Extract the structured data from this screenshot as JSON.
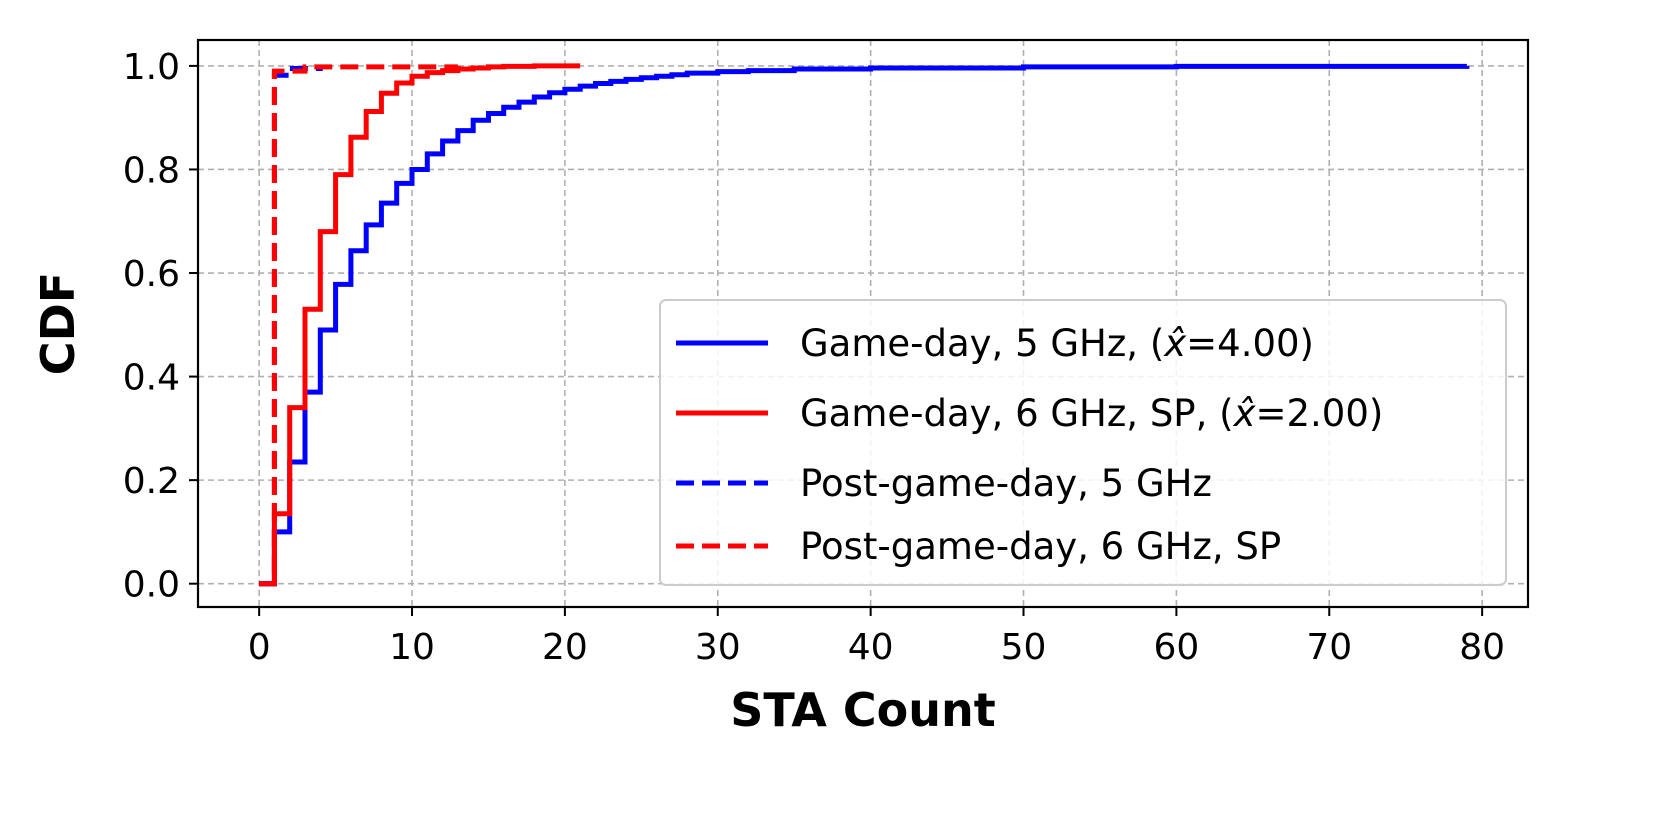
{
  "chart_data": {
    "type": "line",
    "xlabel": "STA Count",
    "ylabel": "CDF",
    "xlim": [
      -4,
      83
    ],
    "ylim": [
      -0.045,
      1.05
    ],
    "xticks": [
      0,
      10,
      20,
      30,
      40,
      50,
      60,
      70,
      80
    ],
    "xtick_labels": [
      "0",
      "10",
      "20",
      "30",
      "40",
      "50",
      "60",
      "70",
      "80"
    ],
    "yticks": [
      0.0,
      0.2,
      0.4,
      0.6,
      0.8,
      1.0
    ],
    "ytick_labels": [
      "0.0",
      "0.2",
      "0.4",
      "0.6",
      "0.8",
      "1.0"
    ],
    "grid": true,
    "legend_position": "lower-right",
    "series": [
      {
        "name": "Game-day, 5 GHz, (x̂=4.00)",
        "label_main": "Game-day, 5 GHz, (",
        "label_var": "x̂",
        "label_end": "=4.00)",
        "color": "#0000ff",
        "style": "solid",
        "step": true,
        "x": [
          0,
          1,
          2,
          3,
          4,
          5,
          6,
          7,
          8,
          9,
          10,
          11,
          12,
          13,
          14,
          15,
          16,
          17,
          18,
          19,
          20,
          21,
          22,
          23,
          24,
          25,
          26,
          27,
          28,
          30,
          32,
          35,
          40,
          50,
          60,
          79
        ],
        "y": [
          0.0,
          0.1,
          0.235,
          0.37,
          0.49,
          0.578,
          0.643,
          0.693,
          0.735,
          0.773,
          0.8,
          0.83,
          0.855,
          0.875,
          0.895,
          0.908,
          0.92,
          0.93,
          0.94,
          0.948,
          0.955,
          0.961,
          0.966,
          0.97,
          0.974,
          0.977,
          0.98,
          0.983,
          0.986,
          0.989,
          0.991,
          0.994,
          0.996,
          0.998,
          0.999,
          1.0
        ]
      },
      {
        "name": "Game-day, 6 GHz, SP, (x̂=2.00)",
        "label_main": "Game-day, 6 GHz, SP, (",
        "label_var": "x̂",
        "label_end": "=2.00)",
        "color": "#ff0000",
        "style": "solid",
        "step": true,
        "x": [
          0,
          1,
          2,
          3,
          4,
          5,
          6,
          7,
          8,
          9,
          10,
          11,
          12,
          13,
          14,
          15,
          16,
          18,
          21
        ],
        "y": [
          0.0,
          0.135,
          0.34,
          0.53,
          0.68,
          0.79,
          0.862,
          0.912,
          0.947,
          0.967,
          0.98,
          0.987,
          0.991,
          0.994,
          0.996,
          0.998,
          0.999,
          1.0,
          1.0
        ]
      },
      {
        "name": "Post-game-day, 5 GHz",
        "label_main": "Post-game-day, 5 GHz",
        "label_var": "",
        "label_end": "",
        "color": "#0000ff",
        "style": "dashed",
        "step": true,
        "x": [
          0,
          1,
          2,
          4
        ],
        "y": [
          0.0,
          0.982,
          0.995,
          1.0
        ]
      },
      {
        "name": "Post-game-day, 6 GHz, SP",
        "label_main": "Post-game-day, 6 GHz, SP",
        "label_var": "",
        "label_end": "",
        "color": "#ff0000",
        "style": "dashed",
        "step": true,
        "x": [
          0,
          1,
          3,
          13
        ],
        "y": [
          0.0,
          0.99,
          0.998,
          1.0
        ]
      }
    ]
  }
}
